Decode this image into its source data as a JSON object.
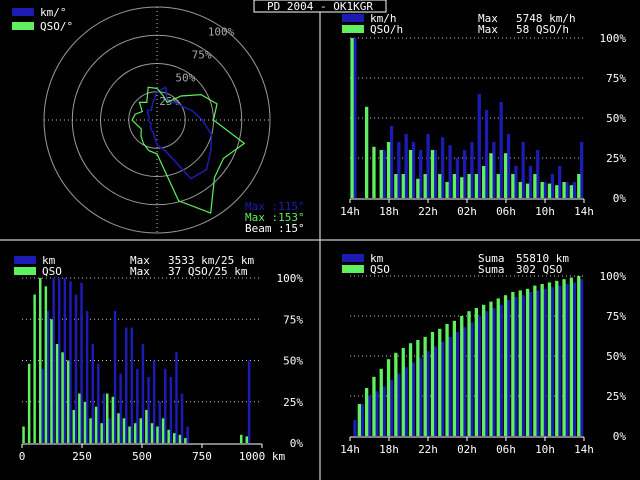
{
  "title": "PD 2004 - OK1KGR",
  "colors": {
    "series_a": "#1c1cb4",
    "series_b": "#5ef05e",
    "text": "#ffffff",
    "ring": "#9a9a9a",
    "grid": "#c8c8c8"
  },
  "chart_data": [
    {
      "type": "polar",
      "legend": [
        "km/°",
        "QSO/°"
      ],
      "ring_labels": [
        "100%",
        "75%",
        "50%",
        "25%"
      ],
      "series": [
        {
          "name": "km/°",
          "points": [
            [
              0,
              0.25
            ],
            [
              15,
              0.3
            ],
            [
              30,
              0.18
            ],
            [
              45,
              0.22
            ],
            [
              60,
              0.25
            ],
            [
              75,
              0.32
            ],
            [
              90,
              0.4
            ],
            [
              105,
              0.5
            ],
            [
              120,
              0.55
            ],
            [
              135,
              0.62
            ],
            [
              150,
              0.6
            ],
            [
              165,
              0.28
            ],
            [
              180,
              0.22
            ],
            [
              195,
              0.12
            ],
            [
              210,
              0.1
            ],
            [
              225,
              0.08
            ],
            [
              240,
              0.06
            ],
            [
              255,
              0.07
            ],
            [
              270,
              0.08
            ],
            [
              285,
              0.07
            ],
            [
              300,
              0.09
            ],
            [
              315,
              0.12
            ],
            [
              330,
              0.1
            ],
            [
              345,
              0.15
            ]
          ]
        },
        {
          "name": "QSO/°",
          "points": [
            [
              0,
              0.28
            ],
            [
              15,
              0.22
            ],
            [
              30,
              0.18
            ],
            [
              45,
              0.3
            ],
            [
              60,
              0.45
            ],
            [
              75,
              0.55
            ],
            [
              90,
              0.5
            ],
            [
              105,
              0.8
            ],
            [
              120,
              0.68
            ],
            [
              135,
              0.72
            ],
            [
              150,
              0.95
            ],
            [
              165,
              0.74
            ],
            [
              180,
              0.3
            ],
            [
              195,
              0.28
            ],
            [
              210,
              0.24
            ],
            [
              225,
              0.2
            ],
            [
              240,
              0.16
            ],
            [
              255,
              0.18
            ],
            [
              270,
              0.22
            ],
            [
              285,
              0.2
            ],
            [
              300,
              0.15
            ],
            [
              315,
              0.22
            ],
            [
              330,
              0.18
            ],
            [
              345,
              0.3
            ]
          ]
        }
      ],
      "stats": [
        {
          "label": "Max",
          "value": ":115°"
        },
        {
          "label": "Max",
          "value": ":153°"
        },
        {
          "label": "Beam",
          "value": ":15°"
        }
      ]
    },
    {
      "type": "bar",
      "legend": [
        "km/h",
        "QSO/h"
      ],
      "stats": [
        {
          "label": "Max",
          "value": "5748 km/h"
        },
        {
          "label": "Max",
          "value": "58 QSO/h"
        }
      ],
      "y_ticks": [
        "100%",
        "75%",
        "50%",
        "25%",
        "0%"
      ],
      "x_ticks": [
        "14h",
        "18h",
        "22h",
        "02h",
        "06h",
        "10h",
        "14h"
      ],
      "series": [
        {
          "name": "km/h",
          "values": [
            100,
            0,
            0,
            0,
            30,
            45,
            35,
            40,
            35,
            30,
            40,
            30,
            38,
            33,
            25,
            30,
            35,
            65,
            55,
            35,
            60,
            40,
            20,
            35,
            20,
            30,
            10,
            15,
            20,
            10,
            10,
            35
          ]
        },
        {
          "name": "QSO/h",
          "values": [
            100,
            0,
            57,
            32,
            30,
            35,
            15,
            15,
            30,
            12,
            15,
            30,
            15,
            10,
            15,
            13,
            15,
            15,
            20,
            28,
            15,
            28,
            15,
            10,
            9,
            15,
            10,
            9,
            8,
            10,
            8,
            15
          ]
        }
      ]
    },
    {
      "type": "bar",
      "legend": [
        "km",
        "QSO"
      ],
      "stats": [
        {
          "label": "Max",
          "value": "3533 km/25 km"
        },
        {
          "label": "Max",
          "value": "37 QSO/25 km"
        }
      ],
      "y_ticks": [
        "100%",
        "75%",
        "50%",
        "25%",
        "0%"
      ],
      "x_ticks": [
        "0",
        "250",
        "500",
        "750",
        "1000 km"
      ],
      "series": [
        {
          "name": "km",
          "values": [
            0,
            0,
            0,
            45,
            80,
            100,
            100,
            100,
            98,
            90,
            97,
            80,
            60,
            48,
            30,
            15,
            80,
            42,
            70,
            70,
            45,
            60,
            40,
            50,
            25,
            45,
            40,
            55,
            30,
            10,
            0,
            0,
            0,
            0,
            0,
            0,
            0,
            0,
            0,
            0,
            50,
            0,
            0
          ]
        },
        {
          "name": "QSO",
          "values": [
            10,
            48,
            90,
            100,
            95,
            75,
            60,
            55,
            50,
            20,
            30,
            25,
            15,
            22,
            12,
            30,
            28,
            18,
            15,
            10,
            12,
            15,
            20,
            12,
            10,
            15,
            8,
            6,
            5,
            3,
            0,
            0,
            0,
            0,
            0,
            0,
            0,
            0,
            0,
            5,
            4,
            0,
            0
          ]
        }
      ]
    },
    {
      "type": "bar",
      "legend": [
        "km",
        "QSO"
      ],
      "stats": [
        {
          "label": "Suma",
          "value": "55810 km"
        },
        {
          "label": "Suma",
          "value": "302 QSO"
        }
      ],
      "y_ticks": [
        "100%",
        "75%",
        "50%",
        "25%",
        "0%"
      ],
      "x_ticks": [
        "14h",
        "18h",
        "22h",
        "02h",
        "06h",
        "10h",
        "14h"
      ],
      "series": [
        {
          "name": "km",
          "values": [
            10,
            20,
            25,
            28,
            31,
            35,
            39,
            43,
            46,
            49,
            53,
            56,
            59,
            62,
            65,
            68,
            71,
            75,
            78,
            80,
            82,
            85,
            87,
            88,
            90,
            91,
            92,
            93,
            94,
            95,
            96,
            98
          ]
        },
        {
          "name": "QSO",
          "values": [
            0,
            20,
            30,
            37,
            42,
            48,
            52,
            55,
            58,
            60,
            62,
            65,
            67,
            70,
            72,
            75,
            78,
            80,
            82,
            84,
            86,
            88,
            90,
            91,
            92,
            94,
            95,
            96,
            97,
            98,
            99,
            100
          ]
        }
      ]
    }
  ]
}
